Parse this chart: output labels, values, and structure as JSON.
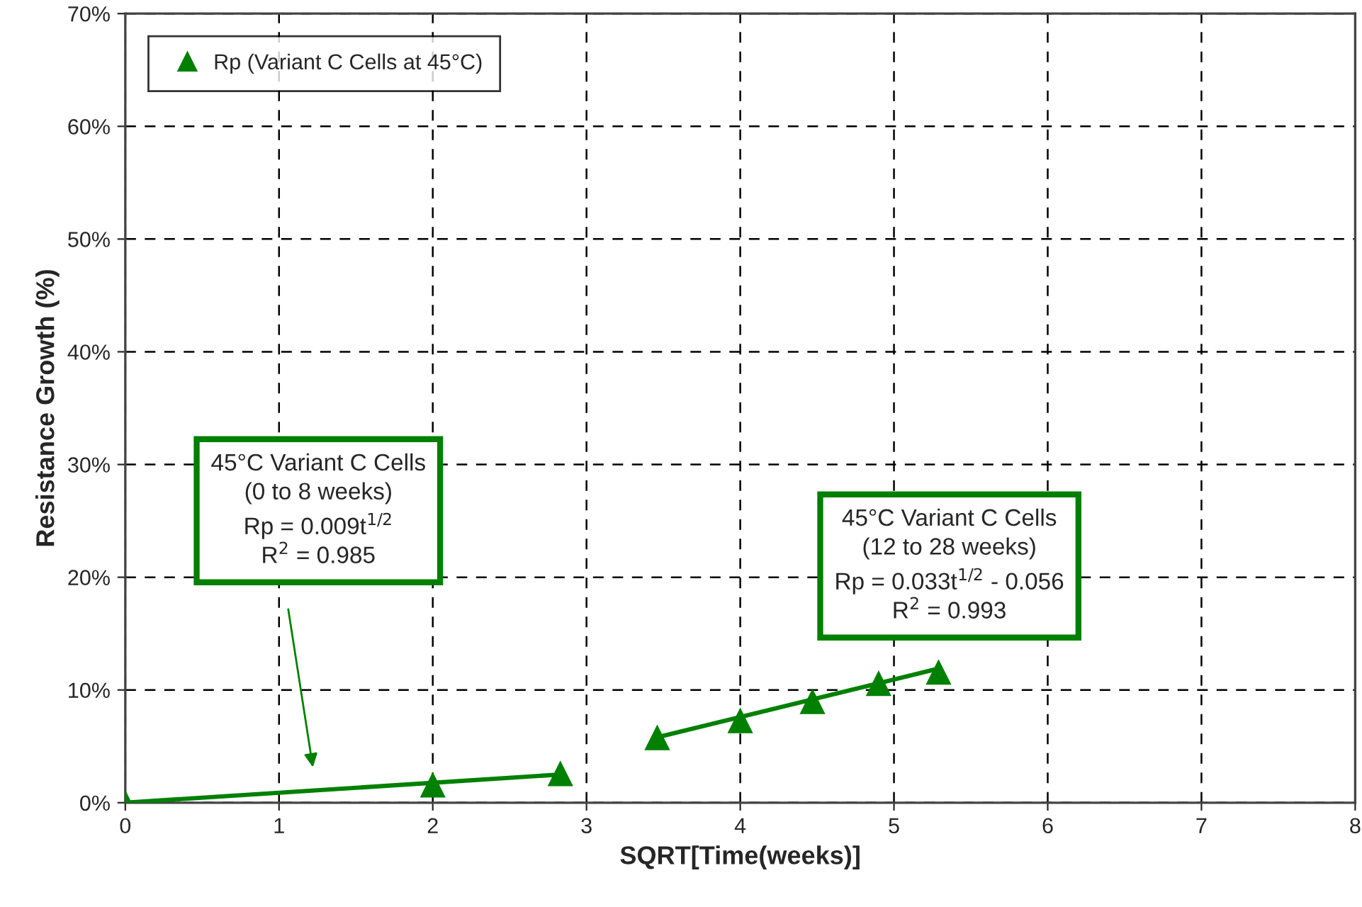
{
  "chart_data": {
    "type": "scatter",
    "xlabel": "SQRT[Time(weeks)]",
    "ylabel": "Resistance Growth (%)",
    "series": [
      {
        "name": "Rp (Variant C Cells at 45°C)",
        "color": "#008000",
        "marker": "triangle",
        "x": [
          0,
          2,
          2.83,
          3.46,
          4,
          4.47,
          4.9,
          5.29
        ],
        "values": [
          0,
          1.6,
          2.6,
          5.8,
          7.3,
          9.0,
          10.6,
          11.6
        ]
      },
      {
        "type": "line",
        "color": "#008000",
        "marker": "none",
        "x": [
          0,
          2.83
        ],
        "values": [
          0,
          2.5
        ]
      },
      {
        "type": "line",
        "color": "#008000",
        "marker": "none",
        "x": [
          3.46,
          5.29
        ],
        "values": [
          5.8,
          11.9
        ]
      }
    ],
    "annotations": [
      "45°C Variant C Cells\n(0 to 8 weeks)\nRp = 0.009t$^{1/2}$\nR$^{2}$ = 0.985",
      "45°C Variant C Cells\n(12 to 28 weeks)\nRp = 0.033t$^{1/2}$ - 0.056\nR$^{2}$ = 0.993"
    ],
    "xlim": [
      0,
      8
    ],
    "xticks": [
      0,
      1,
      2,
      3,
      4,
      5,
      6,
      7,
      8
    ],
    "ylim": [
      0,
      70
    ],
    "yticks": [
      {
        "value": 0,
        "label": "0%"
      },
      {
        "value": 10,
        "label": "10%"
      },
      {
        "value": 20,
        "label": "20%"
      },
      {
        "value": 30,
        "label": "30%"
      },
      {
        "value": 40,
        "label": "40%"
      },
      {
        "value": 50,
        "label": "50%"
      },
      {
        "value": 60,
        "label": "60%"
      },
      {
        "value": 70,
        "label": "70%"
      }
    ],
    "grid": true,
    "legend": "top left",
    "line_style": "solid"
  }
}
